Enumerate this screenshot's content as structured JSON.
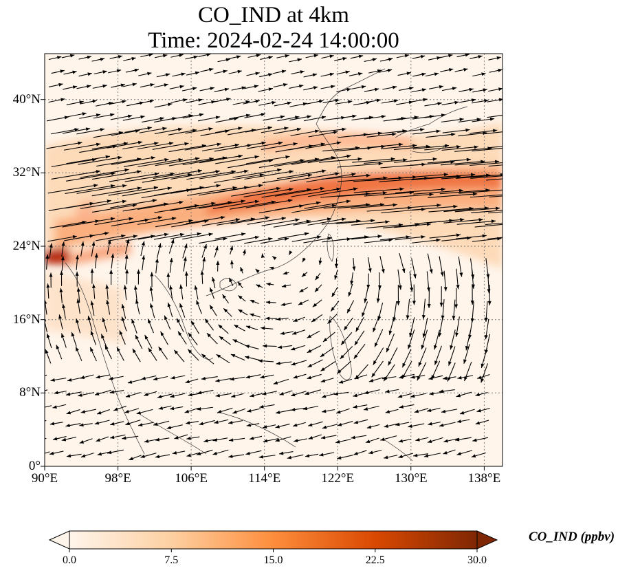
{
  "title_line1": "CO_IND at 4km",
  "title_line2": "Time: 2024-02-24 14:00:00",
  "map": {
    "lon_range": [
      90,
      140
    ],
    "lat_range": [
      0,
      45
    ],
    "lon_ticks": [
      "90°E",
      "98°E",
      "106°E",
      "114°E",
      "122°E",
      "130°E",
      "138°E"
    ],
    "lat_ticks": [
      "0°",
      "8°N",
      "16°N",
      "24°N",
      "32°N",
      "40°N"
    ],
    "gridlines": "dotted",
    "vector_color": "#000000"
  },
  "colorbar": {
    "label": "CO_IND (ppbv)",
    "ticks": [
      "0.0",
      "7.5",
      "15.0",
      "22.5",
      "30.0"
    ],
    "range": [
      0,
      30
    ],
    "extend": "both",
    "colormap": [
      "#fff5eb",
      "#fdd0a2",
      "#fd8d3c",
      "#d94801",
      "#7f2704"
    ]
  }
}
